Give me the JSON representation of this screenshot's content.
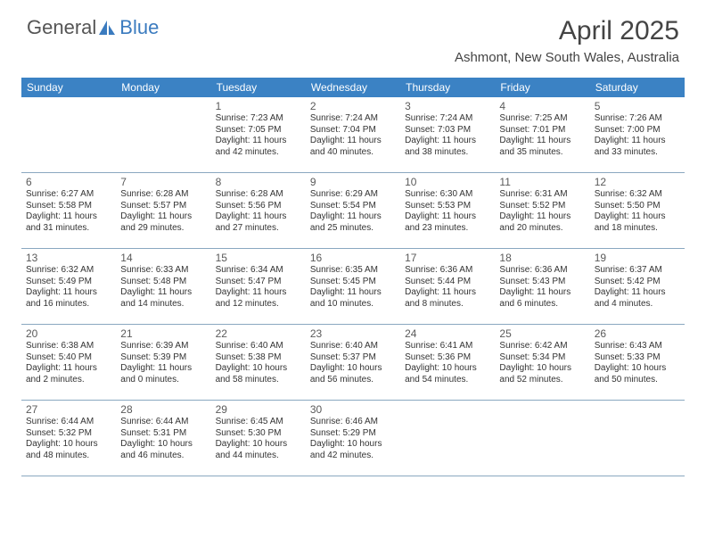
{
  "branding": {
    "logo_general": "General",
    "logo_blue": "Blue",
    "logo_color": "#3b7bbf"
  },
  "header": {
    "month_title": "April 2025",
    "location": "Ashmont, New South Wales, Australia"
  },
  "styling": {
    "header_bg": "#3b82c4",
    "header_text": "#ffffff",
    "row_border": "#8aa8c0",
    "body_text": "#333333",
    "daynum_color": "#5a5a5a",
    "title_color": "#444444",
    "day_header_fontsize": 12,
    "daynum_fontsize": 12,
    "cell_fontsize": 10,
    "title_fontsize": 30,
    "location_fontsize": 15
  },
  "day_names": [
    "Sunday",
    "Monday",
    "Tuesday",
    "Wednesday",
    "Thursday",
    "Friday",
    "Saturday"
  ],
  "weeks": [
    [
      null,
      null,
      {
        "n": "1",
        "sunrise": "Sunrise: 7:23 AM",
        "sunset": "Sunset: 7:05 PM",
        "daylight": "Daylight: 11 hours and 42 minutes."
      },
      {
        "n": "2",
        "sunrise": "Sunrise: 7:24 AM",
        "sunset": "Sunset: 7:04 PM",
        "daylight": "Daylight: 11 hours and 40 minutes."
      },
      {
        "n": "3",
        "sunrise": "Sunrise: 7:24 AM",
        "sunset": "Sunset: 7:03 PM",
        "daylight": "Daylight: 11 hours and 38 minutes."
      },
      {
        "n": "4",
        "sunrise": "Sunrise: 7:25 AM",
        "sunset": "Sunset: 7:01 PM",
        "daylight": "Daylight: 11 hours and 35 minutes."
      },
      {
        "n": "5",
        "sunrise": "Sunrise: 7:26 AM",
        "sunset": "Sunset: 7:00 PM",
        "daylight": "Daylight: 11 hours and 33 minutes."
      }
    ],
    [
      {
        "n": "6",
        "sunrise": "Sunrise: 6:27 AM",
        "sunset": "Sunset: 5:58 PM",
        "daylight": "Daylight: 11 hours and 31 minutes."
      },
      {
        "n": "7",
        "sunrise": "Sunrise: 6:28 AM",
        "sunset": "Sunset: 5:57 PM",
        "daylight": "Daylight: 11 hours and 29 minutes."
      },
      {
        "n": "8",
        "sunrise": "Sunrise: 6:28 AM",
        "sunset": "Sunset: 5:56 PM",
        "daylight": "Daylight: 11 hours and 27 minutes."
      },
      {
        "n": "9",
        "sunrise": "Sunrise: 6:29 AM",
        "sunset": "Sunset: 5:54 PM",
        "daylight": "Daylight: 11 hours and 25 minutes."
      },
      {
        "n": "10",
        "sunrise": "Sunrise: 6:30 AM",
        "sunset": "Sunset: 5:53 PM",
        "daylight": "Daylight: 11 hours and 23 minutes."
      },
      {
        "n": "11",
        "sunrise": "Sunrise: 6:31 AM",
        "sunset": "Sunset: 5:52 PM",
        "daylight": "Daylight: 11 hours and 20 minutes."
      },
      {
        "n": "12",
        "sunrise": "Sunrise: 6:32 AM",
        "sunset": "Sunset: 5:50 PM",
        "daylight": "Daylight: 11 hours and 18 minutes."
      }
    ],
    [
      {
        "n": "13",
        "sunrise": "Sunrise: 6:32 AM",
        "sunset": "Sunset: 5:49 PM",
        "daylight": "Daylight: 11 hours and 16 minutes."
      },
      {
        "n": "14",
        "sunrise": "Sunrise: 6:33 AM",
        "sunset": "Sunset: 5:48 PM",
        "daylight": "Daylight: 11 hours and 14 minutes."
      },
      {
        "n": "15",
        "sunrise": "Sunrise: 6:34 AM",
        "sunset": "Sunset: 5:47 PM",
        "daylight": "Daylight: 11 hours and 12 minutes."
      },
      {
        "n": "16",
        "sunrise": "Sunrise: 6:35 AM",
        "sunset": "Sunset: 5:45 PM",
        "daylight": "Daylight: 11 hours and 10 minutes."
      },
      {
        "n": "17",
        "sunrise": "Sunrise: 6:36 AM",
        "sunset": "Sunset: 5:44 PM",
        "daylight": "Daylight: 11 hours and 8 minutes."
      },
      {
        "n": "18",
        "sunrise": "Sunrise: 6:36 AM",
        "sunset": "Sunset: 5:43 PM",
        "daylight": "Daylight: 11 hours and 6 minutes."
      },
      {
        "n": "19",
        "sunrise": "Sunrise: 6:37 AM",
        "sunset": "Sunset: 5:42 PM",
        "daylight": "Daylight: 11 hours and 4 minutes."
      }
    ],
    [
      {
        "n": "20",
        "sunrise": "Sunrise: 6:38 AM",
        "sunset": "Sunset: 5:40 PM",
        "daylight": "Daylight: 11 hours and 2 minutes."
      },
      {
        "n": "21",
        "sunrise": "Sunrise: 6:39 AM",
        "sunset": "Sunset: 5:39 PM",
        "daylight": "Daylight: 11 hours and 0 minutes."
      },
      {
        "n": "22",
        "sunrise": "Sunrise: 6:40 AM",
        "sunset": "Sunset: 5:38 PM",
        "daylight": "Daylight: 10 hours and 58 minutes."
      },
      {
        "n": "23",
        "sunrise": "Sunrise: 6:40 AM",
        "sunset": "Sunset: 5:37 PM",
        "daylight": "Daylight: 10 hours and 56 minutes."
      },
      {
        "n": "24",
        "sunrise": "Sunrise: 6:41 AM",
        "sunset": "Sunset: 5:36 PM",
        "daylight": "Daylight: 10 hours and 54 minutes."
      },
      {
        "n": "25",
        "sunrise": "Sunrise: 6:42 AM",
        "sunset": "Sunset: 5:34 PM",
        "daylight": "Daylight: 10 hours and 52 minutes."
      },
      {
        "n": "26",
        "sunrise": "Sunrise: 6:43 AM",
        "sunset": "Sunset: 5:33 PM",
        "daylight": "Daylight: 10 hours and 50 minutes."
      }
    ],
    [
      {
        "n": "27",
        "sunrise": "Sunrise: 6:44 AM",
        "sunset": "Sunset: 5:32 PM",
        "daylight": "Daylight: 10 hours and 48 minutes."
      },
      {
        "n": "28",
        "sunrise": "Sunrise: 6:44 AM",
        "sunset": "Sunset: 5:31 PM",
        "daylight": "Daylight: 10 hours and 46 minutes."
      },
      {
        "n": "29",
        "sunrise": "Sunrise: 6:45 AM",
        "sunset": "Sunset: 5:30 PM",
        "daylight": "Daylight: 10 hours and 44 minutes."
      },
      {
        "n": "30",
        "sunrise": "Sunrise: 6:46 AM",
        "sunset": "Sunset: 5:29 PM",
        "daylight": "Daylight: 10 hours and 42 minutes."
      },
      null,
      null,
      null
    ]
  ]
}
